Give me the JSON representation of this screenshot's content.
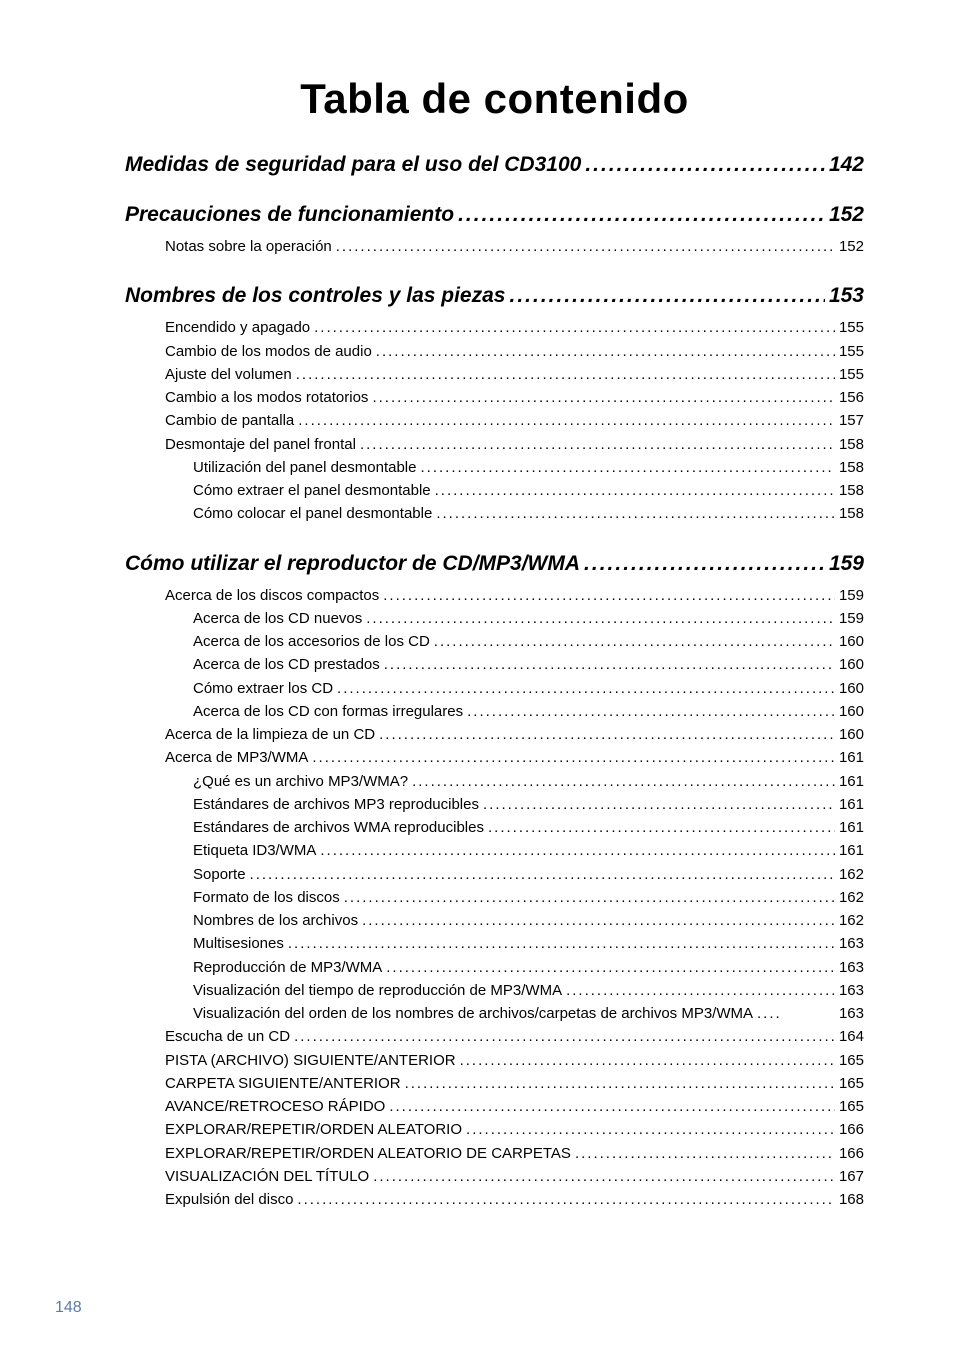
{
  "title": "Tabla de contenido",
  "pageNumber": "148",
  "sections": [
    {
      "label": "Medidas de seguridad para el uso del CD3100",
      "page": "142",
      "items": []
    },
    {
      "label": "Precauciones de funcionamiento",
      "page": "152",
      "items": [
        {
          "indent": 1,
          "label": "Notas sobre la operación",
          "page": "152"
        }
      ]
    },
    {
      "label": "Nombres de los controles y las piezas",
      "page": "153",
      "items": [
        {
          "indent": 1,
          "label": "Encendido y apagado",
          "page": "155"
        },
        {
          "indent": 1,
          "label": "Cambio de los modos de audio",
          "page": "155"
        },
        {
          "indent": 1,
          "label": "Ajuste del volumen",
          "page": "155"
        },
        {
          "indent": 1,
          "label": "Cambio a los modos rotatorios",
          "page": "156"
        },
        {
          "indent": 1,
          "label": "Cambio de pantalla",
          "page": "157"
        },
        {
          "indent": 1,
          "label": "Desmontaje del panel frontal",
          "page": "158"
        },
        {
          "indent": 2,
          "label": "Utilización del panel desmontable",
          "page": "158"
        },
        {
          "indent": 2,
          "label": "Cómo extraer el panel desmontable",
          "page": "158"
        },
        {
          "indent": 2,
          "label": "Cómo colocar el panel desmontable",
          "page": "158"
        }
      ]
    },
    {
      "label": "Cómo utilizar el reproductor de CD/MP3/WMA",
      "page": "159",
      "items": [
        {
          "indent": 1,
          "label": "Acerca de los discos compactos",
          "page": "159"
        },
        {
          "indent": 2,
          "label": "Acerca de los CD nuevos",
          "page": "159"
        },
        {
          "indent": 2,
          "label": "Acerca de los accesorios de los CD",
          "page": "160"
        },
        {
          "indent": 2,
          "label": "Acerca de los CD prestados",
          "page": "160"
        },
        {
          "indent": 2,
          "label": "Cómo extraer los CD",
          "page": "160"
        },
        {
          "indent": 2,
          "label": "Acerca de los CD con formas irregulares",
          "page": "160"
        },
        {
          "indent": 1,
          "label": "Acerca de la limpieza de un CD",
          "page": "160"
        },
        {
          "indent": 1,
          "label": "Acerca de MP3/WMA",
          "page": "161"
        },
        {
          "indent": 2,
          "label": "¿Qué es un archivo MP3/WMA?",
          "page": "161"
        },
        {
          "indent": 2,
          "label": "Estándares de archivos MP3 reproducibles",
          "page": "161"
        },
        {
          "indent": 2,
          "label": "Estándares de archivos WMA reproducibles",
          "page": "161"
        },
        {
          "indent": 2,
          "label": "Etiqueta ID3/WMA",
          "page": "161"
        },
        {
          "indent": 2,
          "label": "Soporte",
          "page": "162"
        },
        {
          "indent": 2,
          "label": "Formato de los discos",
          "page": "162"
        },
        {
          "indent": 2,
          "label": "Nombres de los archivos",
          "page": "162"
        },
        {
          "indent": 2,
          "label": "Multisesiones",
          "page": "163"
        },
        {
          "indent": 2,
          "label": "Reproducción de MP3/WMA",
          "page": "163"
        },
        {
          "indent": 2,
          "label": "Visualización del tiempo de reproducción de MP3/WMA",
          "page": "163"
        },
        {
          "indent": 2,
          "label": "Visualización del orden de los nombres de archivos/carpetas de archivos MP3/WMA",
          "page": "163",
          "nodots": true
        },
        {
          "indent": 1,
          "label": "Escucha de un CD",
          "page": "164"
        },
        {
          "indent": 1,
          "label": "PISTA (ARCHIVO) SIGUIENTE/ANTERIOR",
          "page": "165"
        },
        {
          "indent": 1,
          "label": "CARPETA SIGUIENTE/ANTERIOR",
          "page": "165"
        },
        {
          "indent": 1,
          "label": "AVANCE/RETROCESO RÁPIDO",
          "page": "165"
        },
        {
          "indent": 1,
          "label": "EXPLORAR/REPETIR/ORDEN ALEATORIO",
          "page": "166"
        },
        {
          "indent": 1,
          "label": "EXPLORAR/REPETIR/ORDEN ALEATORIO DE CARPETAS",
          "page": "166"
        },
        {
          "indent": 1,
          "label": "VISUALIZACIÓN DEL TÍTULO",
          "page": "167"
        },
        {
          "indent": 1,
          "label": "Expulsión del disco",
          "page": "168"
        }
      ]
    }
  ]
}
